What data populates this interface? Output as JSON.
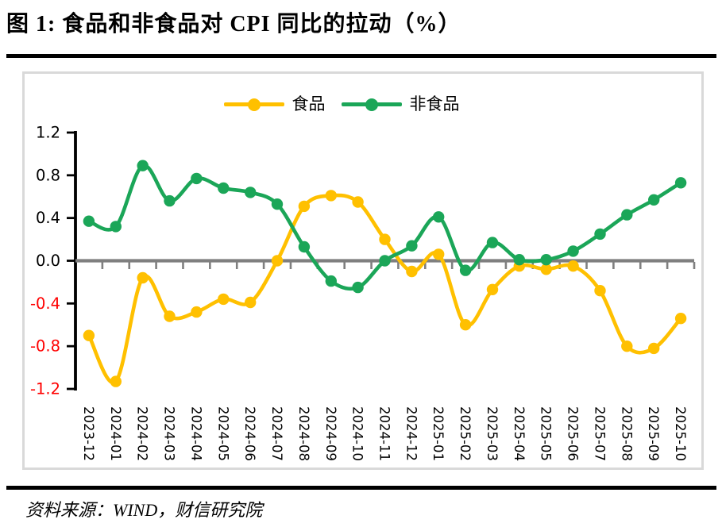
{
  "title": "图 1:  食品和非食品对 CPI 同比的拉动（%）",
  "source_note": "资料来源：WIND，财信研究院",
  "colors": {
    "food": "#FFC000",
    "nonfood": "#1BA658",
    "axis": "#000000",
    "zero_line": "#7F7F7F",
    "category_tick": "#7F7F7F",
    "positive_label": "#000000",
    "negative_label": "#FF0000",
    "x_label": "#000000",
    "frame_border": "#D9D9D9",
    "divider_rule": "#000000"
  },
  "legend": {
    "items": [
      {
        "id": "food",
        "label": "食品"
      },
      {
        "id": "nonfood",
        "label": "非食品"
      }
    ]
  },
  "chart_data": {
    "type": "line",
    "smooth": true,
    "title": "图 1:  食品和非食品对 CPI 同比的拉动（%）",
    "xlabel": "",
    "ylabel": "",
    "ylim": [
      -1.2,
      1.2
    ],
    "grid": false,
    "legend_position": "top-center",
    "zero_axis_crossing": true,
    "categories": [
      "2023-12",
      "2024-01",
      "2024-02",
      "2024-03",
      "2024-04",
      "2024-05",
      "2024-06",
      "2024-07",
      "2024-08",
      "2024-09",
      "2024-10",
      "2024-11",
      "2024-12",
      "2025-01",
      "2025-02",
      "2025-03",
      "2025-04",
      "2025-05",
      "2025-06",
      "2025-07",
      "2025-08",
      "2025-09",
      "2025-10"
    ],
    "series": [
      {
        "id": "food",
        "name": "食品",
        "color": "#FFC000",
        "values": [
          -0.7,
          -1.13,
          -0.16,
          -0.52,
          -0.48,
          -0.36,
          -0.39,
          0.0,
          0.51,
          0.61,
          0.55,
          0.2,
          -0.1,
          0.06,
          -0.6,
          -0.27,
          -0.05,
          -0.08,
          -0.05,
          -0.28,
          -0.8,
          -0.82,
          -0.54
        ]
      },
      {
        "id": "nonfood",
        "name": "非食品",
        "color": "#1BA658",
        "values": [
          0.37,
          0.32,
          0.89,
          0.56,
          0.77,
          0.68,
          0.64,
          0.53,
          0.13,
          -0.19,
          -0.25,
          0.0,
          0.14,
          0.41,
          -0.09,
          0.17,
          0.01,
          0.01,
          0.09,
          0.25,
          0.43,
          0.57,
          0.73
        ]
      }
    ],
    "yticks": [
      {
        "value": 1.2,
        "label": "1.2"
      },
      {
        "value": 0.8,
        "label": "0.8"
      },
      {
        "value": 0.4,
        "label": "0.4"
      },
      {
        "value": 0.0,
        "label": "0.0"
      },
      {
        "value": -0.4,
        "label": "-0.4"
      },
      {
        "value": -0.8,
        "label": "-0.8"
      },
      {
        "value": -1.2,
        "label": "-1.2"
      }
    ]
  }
}
